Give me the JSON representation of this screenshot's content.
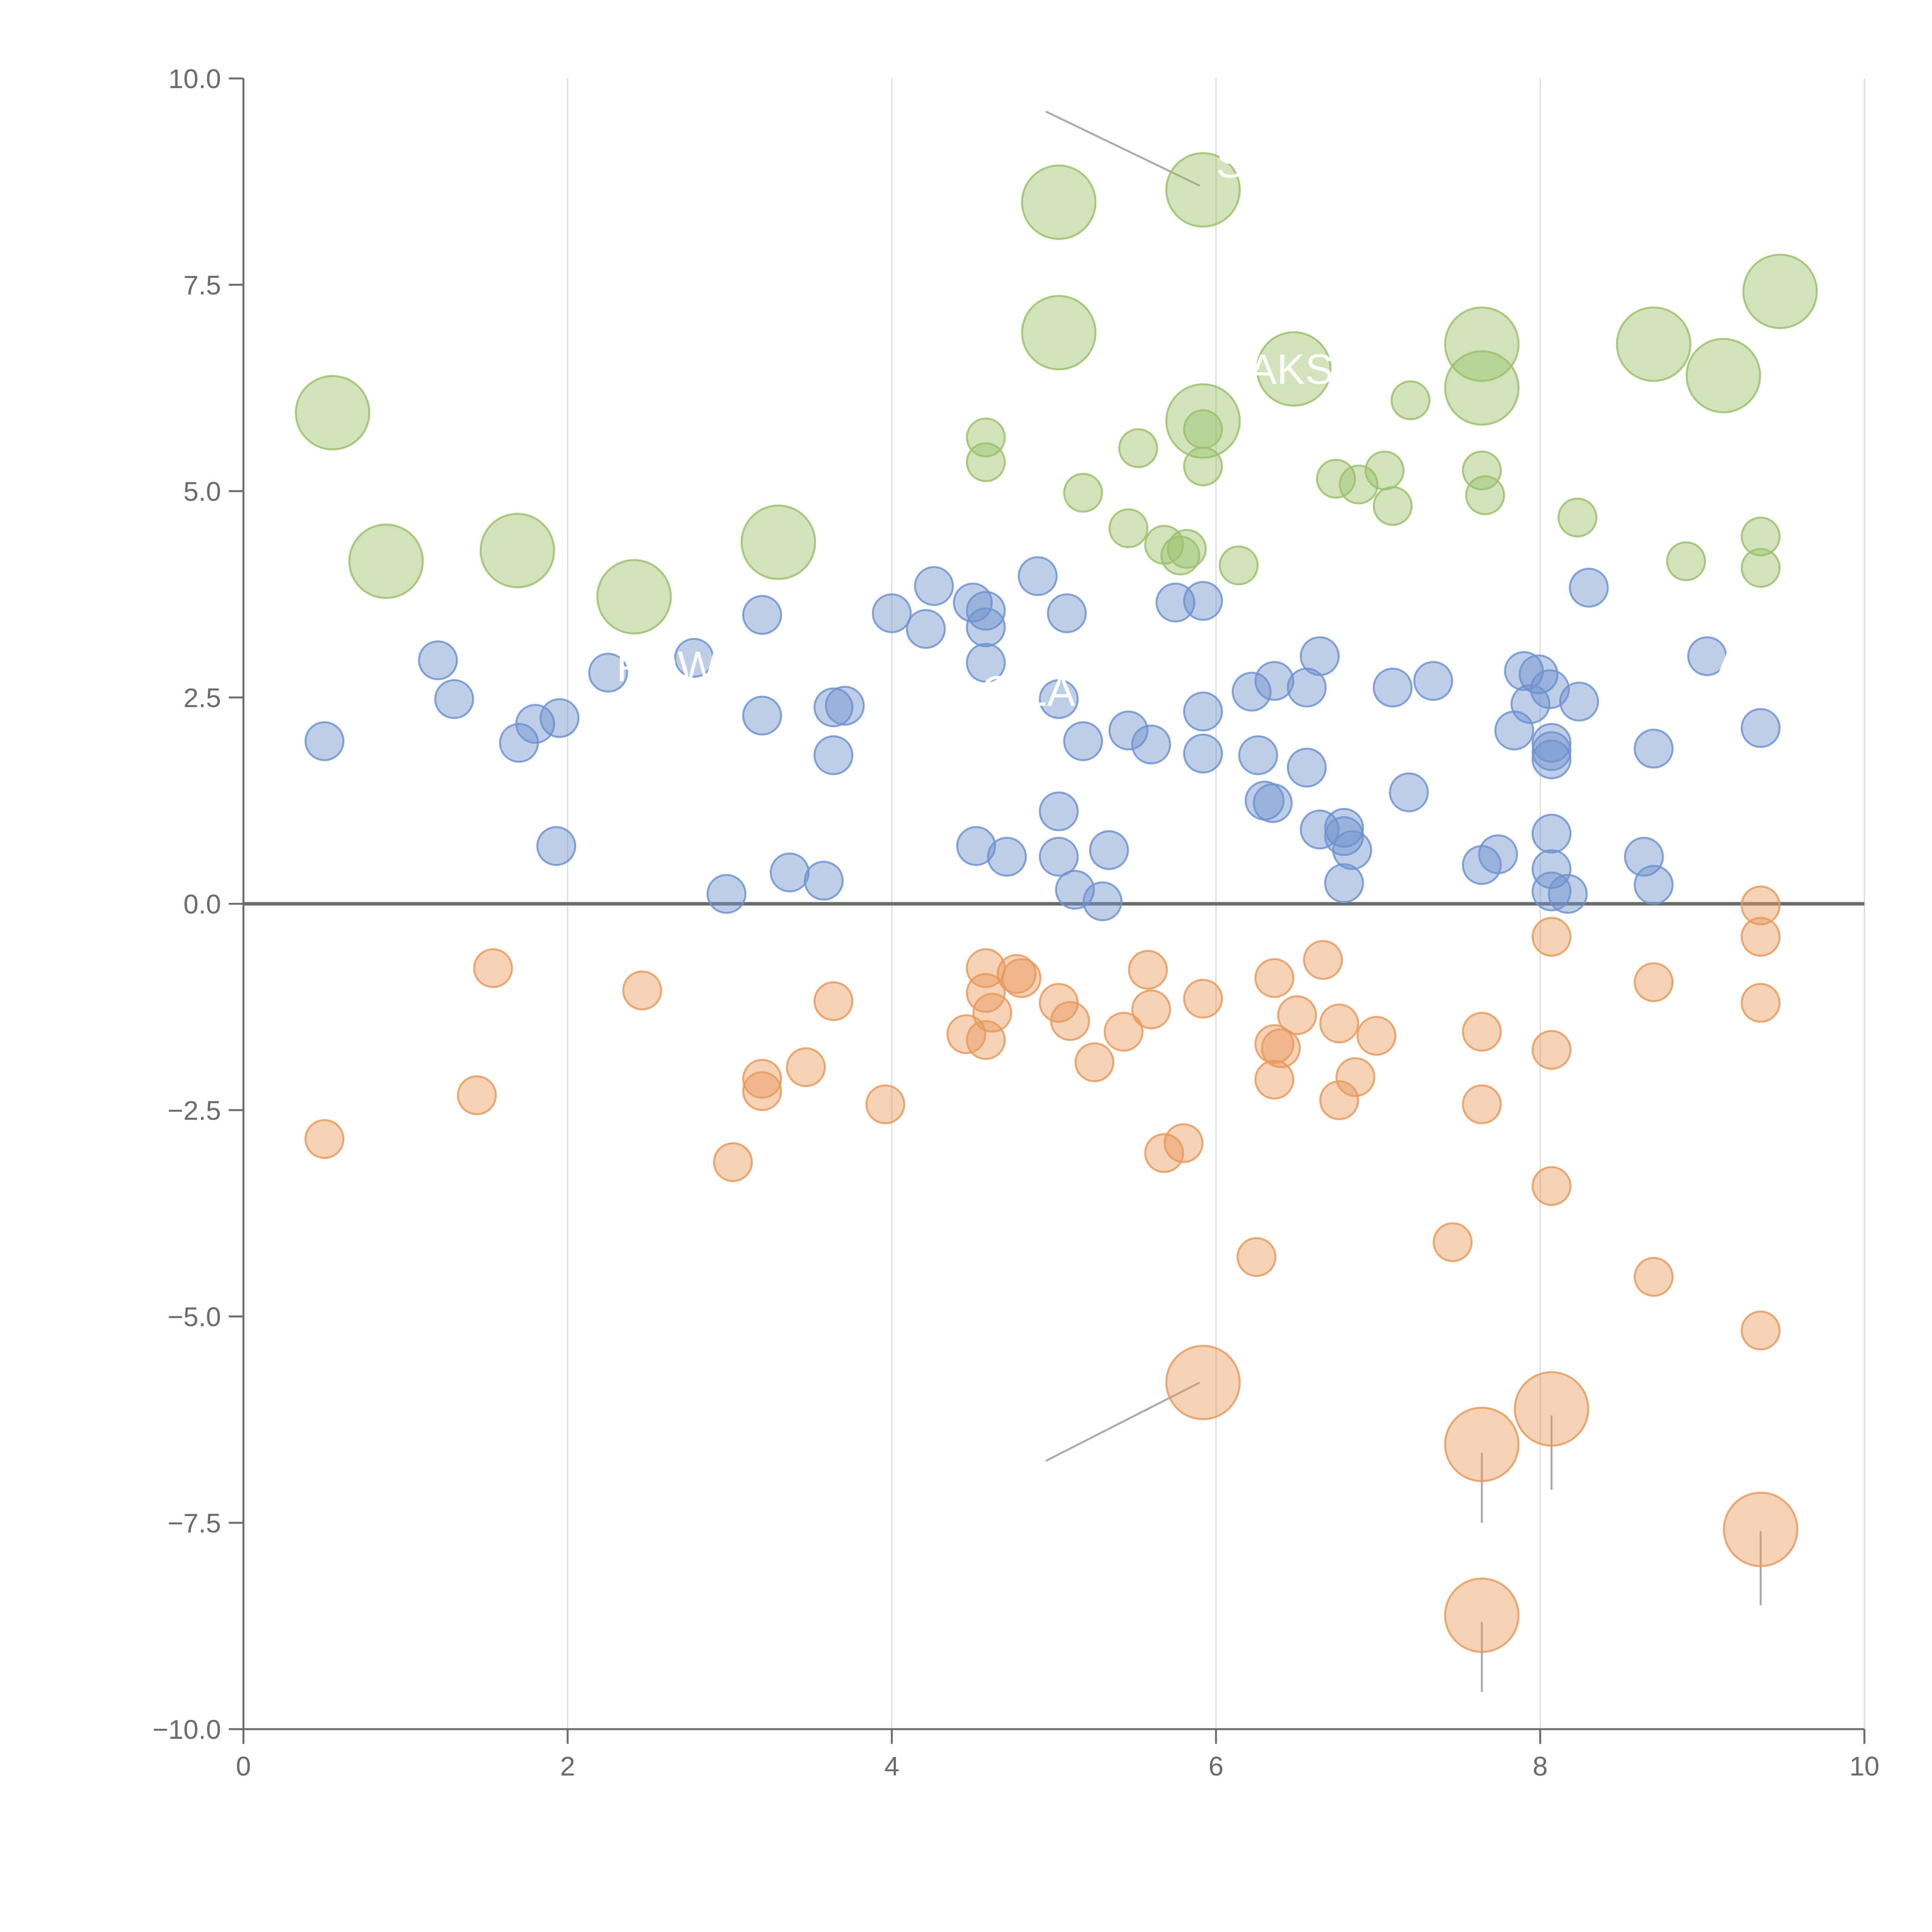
{
  "chart_data": {
    "type": "scatter",
    "title": "",
    "xlabel": "",
    "ylabel": "",
    "xlim": [
      0,
      10
    ],
    "ylim": [
      -10,
      10
    ],
    "grid": "vertical",
    "x_ticks": [
      0,
      2,
      4,
      6,
      8,
      10
    ],
    "y_ticks": [
      -10,
      -7.5,
      -5,
      -2.5,
      0,
      2.5,
      5,
      7.5,
      10
    ],
    "x_tick_labels": [
      "0",
      "2",
      "4",
      "6",
      "8",
      "10"
    ],
    "y_tick_labels": [
      "−10.0",
      "−7.5",
      "−5.0",
      "−2.5",
      "0.0",
      "2.5",
      "5.0",
      "7.5",
      "10.0"
    ],
    "baseline": 0,
    "colors": {
      "green": "#9bc16a",
      "blue": "#6f93cf",
      "orange": "#e89a5c",
      "axis": "#6b6b6b",
      "grid": "#d9d9d9",
      "leader": "#aaaaaa"
    },
    "series": [
      {
        "name": "green",
        "color": "#9bc16a",
        "points": [
          {
            "x": 0.55,
            "y": 5.95,
            "r": 2
          },
          {
            "x": 0.88,
            "y": 4.15,
            "r": 2
          },
          {
            "x": 1.69,
            "y": 4.28,
            "r": 2
          },
          {
            "x": 2.41,
            "y": 3.72,
            "r": 2
          },
          {
            "x": 3.3,
            "y": 4.38,
            "r": 2
          },
          {
            "x": 5.03,
            "y": 8.5,
            "r": 2
          },
          {
            "x": 5.03,
            "y": 6.92,
            "r": 2
          },
          {
            "x": 5.92,
            "y": 8.65,
            "r": 2
          },
          {
            "x": 6.48,
            "y": 6.48,
            "r": 2
          },
          {
            "x": 5.92,
            "y": 5.85,
            "r": 2
          },
          {
            "x": 7.64,
            "y": 6.78,
            "r": 2
          },
          {
            "x": 7.64,
            "y": 6.25,
            "r": 2
          },
          {
            "x": 8.7,
            "y": 6.78,
            "r": 2
          },
          {
            "x": 9.13,
            "y": 6.4,
            "r": 2
          },
          {
            "x": 9.48,
            "y": 7.42,
            "r": 2
          },
          {
            "x": 4.58,
            "y": 5.65,
            "r": 1
          },
          {
            "x": 4.58,
            "y": 5.35,
            "r": 1
          },
          {
            "x": 5.18,
            "y": 4.98,
            "r": 1
          },
          {
            "x": 5.52,
            "y": 5.52,
            "r": 1
          },
          {
            "x": 5.46,
            "y": 4.55,
            "r": 1
          },
          {
            "x": 5.68,
            "y": 4.35,
            "r": 1
          },
          {
            "x": 5.78,
            "y": 4.22,
            "r": 1
          },
          {
            "x": 5.82,
            "y": 4.3,
            "r": 1
          },
          {
            "x": 5.92,
            "y": 5.75,
            "r": 1
          },
          {
            "x": 5.92,
            "y": 5.3,
            "r": 1
          },
          {
            "x": 6.14,
            "y": 4.1,
            "r": 1
          },
          {
            "x": 6.74,
            "y": 5.15,
            "r": 1
          },
          {
            "x": 6.88,
            "y": 5.08,
            "r": 1
          },
          {
            "x": 7.04,
            "y": 5.25,
            "r": 1
          },
          {
            "x": 7.09,
            "y": 4.82,
            "r": 1
          },
          {
            "x": 7.2,
            "y": 6.1,
            "r": 1
          },
          {
            "x": 7.64,
            "y": 5.25,
            "r": 1
          },
          {
            "x": 7.66,
            "y": 4.95,
            "r": 1
          },
          {
            "x": 8.23,
            "y": 4.68,
            "r": 1
          },
          {
            "x": 8.9,
            "y": 4.15,
            "r": 1
          },
          {
            "x": 9.36,
            "y": 4.45,
            "r": 1
          },
          {
            "x": 9.36,
            "y": 4.07,
            "r": 1
          }
        ]
      },
      {
        "name": "blue",
        "color": "#6f93cf",
        "points": [
          {
            "x": 0.5,
            "y": 1.97,
            "r": 1
          },
          {
            "x": 1.2,
            "y": 2.95,
            "r": 1
          },
          {
            "x": 1.3,
            "y": 2.48,
            "r": 1
          },
          {
            "x": 1.7,
            "y": 1.95,
            "r": 1
          },
          {
            "x": 1.8,
            "y": 2.18,
            "r": 1
          },
          {
            "x": 1.95,
            "y": 2.25,
            "r": 1
          },
          {
            "x": 1.93,
            "y": 0.7,
            "r": 1
          },
          {
            "x": 2.25,
            "y": 2.8,
            "r": 1
          },
          {
            "x": 2.78,
            "y": 2.98,
            "r": 1
          },
          {
            "x": 2.98,
            "y": 0.12,
            "r": 1
          },
          {
            "x": 3.2,
            "y": 3.5,
            "r": 1
          },
          {
            "x": 3.2,
            "y": 2.28,
            "r": 1
          },
          {
            "x": 3.37,
            "y": 0.38,
            "r": 1
          },
          {
            "x": 3.58,
            "y": 0.28,
            "r": 1
          },
          {
            "x": 3.64,
            "y": 2.38,
            "r": 1
          },
          {
            "x": 3.64,
            "y": 1.8,
            "r": 1
          },
          {
            "x": 3.71,
            "y": 2.4,
            "r": 1
          },
          {
            "x": 4.0,
            "y": 3.52,
            "r": 1
          },
          {
            "x": 4.21,
            "y": 3.33,
            "r": 1
          },
          {
            "x": 4.26,
            "y": 3.85,
            "r": 1
          },
          {
            "x": 4.5,
            "y": 3.65,
            "r": 1
          },
          {
            "x": 4.58,
            "y": 3.55,
            "r": 1
          },
          {
            "x": 4.58,
            "y": 3.35,
            "r": 1
          },
          {
            "x": 4.58,
            "y": 2.92,
            "r": 1
          },
          {
            "x": 4.52,
            "y": 0.7,
            "r": 1
          },
          {
            "x": 4.71,
            "y": 0.57,
            "r": 1
          },
          {
            "x": 4.9,
            "y": 3.97,
            "r": 1
          },
          {
            "x": 5.03,
            "y": 2.48,
            "r": 1
          },
          {
            "x": 5.03,
            "y": 1.12,
            "r": 1
          },
          {
            "x": 5.03,
            "y": 0.57,
            "r": 1
          },
          {
            "x": 5.08,
            "y": 3.52,
            "r": 1
          },
          {
            "x": 5.13,
            "y": 0.17,
            "r": 1
          },
          {
            "x": 5.18,
            "y": 1.97,
            "r": 1
          },
          {
            "x": 5.3,
            "y": 0.03,
            "r": 1
          },
          {
            "x": 5.34,
            "y": 0.65,
            "r": 1
          },
          {
            "x": 5.46,
            "y": 2.1,
            "r": 1
          },
          {
            "x": 5.6,
            "y": 1.93,
            "r": 1
          },
          {
            "x": 5.75,
            "y": 3.65,
            "r": 1
          },
          {
            "x": 5.92,
            "y": 3.67,
            "r": 1
          },
          {
            "x": 5.92,
            "y": 2.33,
            "r": 1
          },
          {
            "x": 5.92,
            "y": 1.82,
            "r": 1
          },
          {
            "x": 6.22,
            "y": 2.57,
            "r": 1
          },
          {
            "x": 6.26,
            "y": 1.8,
            "r": 1
          },
          {
            "x": 6.3,
            "y": 1.25,
            "r": 1
          },
          {
            "x": 6.35,
            "y": 1.22,
            "r": 1
          },
          {
            "x": 6.36,
            "y": 2.7,
            "r": 1
          },
          {
            "x": 6.56,
            "y": 2.62,
            "r": 1
          },
          {
            "x": 6.56,
            "y": 1.65,
            "r": 1
          },
          {
            "x": 6.64,
            "y": 3.0,
            "r": 1
          },
          {
            "x": 6.64,
            "y": 0.9,
            "r": 1
          },
          {
            "x": 6.79,
            "y": 0.92,
            "r": 1
          },
          {
            "x": 6.79,
            "y": 0.82,
            "r": 1
          },
          {
            "x": 6.84,
            "y": 0.65,
            "r": 1
          },
          {
            "x": 6.79,
            "y": 0.25,
            "r": 1
          },
          {
            "x": 7.09,
            "y": 2.62,
            "r": 1
          },
          {
            "x": 7.19,
            "y": 1.35,
            "r": 1
          },
          {
            "x": 7.34,
            "y": 2.7,
            "r": 1
          },
          {
            "x": 7.64,
            "y": 0.47,
            "r": 1
          },
          {
            "x": 7.74,
            "y": 0.6,
            "r": 1
          },
          {
            "x": 7.84,
            "y": 2.1,
            "r": 1
          },
          {
            "x": 7.9,
            "y": 2.82,
            "r": 1
          },
          {
            "x": 7.94,
            "y": 2.42,
            "r": 1
          },
          {
            "x": 7.99,
            "y": 2.78,
            "r": 1
          },
          {
            "x": 8.06,
            "y": 2.6,
            "r": 1
          },
          {
            "x": 8.07,
            "y": 1.95,
            "r": 1
          },
          {
            "x": 8.07,
            "y": 1.85,
            "r": 1
          },
          {
            "x": 8.07,
            "y": 1.75,
            "r": 1
          },
          {
            "x": 8.07,
            "y": 0.85,
            "r": 1
          },
          {
            "x": 8.07,
            "y": 0.42,
            "r": 1
          },
          {
            "x": 8.07,
            "y": 0.15,
            "r": 1
          },
          {
            "x": 8.17,
            "y": 0.12,
            "r": 1
          },
          {
            "x": 8.24,
            "y": 2.45,
            "r": 1
          },
          {
            "x": 8.3,
            "y": 3.83,
            "r": 1
          },
          {
            "x": 8.64,
            "y": 0.57,
            "r": 1
          },
          {
            "x": 8.7,
            "y": 1.88,
            "r": 1
          },
          {
            "x": 8.7,
            "y": 0.23,
            "r": 1
          },
          {
            "x": 9.03,
            "y": 3.0,
            "r": 1
          },
          {
            "x": 9.36,
            "y": 2.13,
            "r": 1
          }
        ]
      },
      {
        "name": "orange",
        "color": "#e89a5c",
        "points": [
          {
            "x": 0.5,
            "y": -2.85,
            "r": 1
          },
          {
            "x": 1.44,
            "y": -2.32,
            "r": 1
          },
          {
            "x": 1.54,
            "y": -0.78,
            "r": 1
          },
          {
            "x": 2.46,
            "y": -1.05,
            "r": 1
          },
          {
            "x": 3.02,
            "y": -3.13,
            "r": 1
          },
          {
            "x": 3.2,
            "y": -2.12,
            "r": 1
          },
          {
            "x": 3.2,
            "y": -2.27,
            "r": 1
          },
          {
            "x": 3.47,
            "y": -1.98,
            "r": 1
          },
          {
            "x": 3.64,
            "y": -1.18,
            "r": 1
          },
          {
            "x": 3.96,
            "y": -2.43,
            "r": 1
          },
          {
            "x": 4.46,
            "y": -1.58,
            "r": 1
          },
          {
            "x": 4.58,
            "y": -0.78,
            "r": 1
          },
          {
            "x": 4.58,
            "y": -1.08,
            "r": 1
          },
          {
            "x": 4.58,
            "y": -1.65,
            "r": 1
          },
          {
            "x": 4.62,
            "y": -1.32,
            "r": 1
          },
          {
            "x": 4.77,
            "y": -0.85,
            "r": 1
          },
          {
            "x": 4.8,
            "y": -0.9,
            "r": 1
          },
          {
            "x": 5.03,
            "y": -1.2,
            "r": 1
          },
          {
            "x": 5.1,
            "y": -1.42,
            "r": 1
          },
          {
            "x": 5.25,
            "y": -1.92,
            "r": 1
          },
          {
            "x": 5.43,
            "y": -1.55,
            "r": 1
          },
          {
            "x": 5.58,
            "y": -0.8,
            "r": 1
          },
          {
            "x": 5.6,
            "y": -1.28,
            "r": 1
          },
          {
            "x": 5.68,
            "y": -3.02,
            "r": 1
          },
          {
            "x": 5.8,
            "y": -2.9,
            "r": 1
          },
          {
            "x": 5.92,
            "y": -1.15,
            "r": 1
          },
          {
            "x": 6.25,
            "y": -4.28,
            "r": 1
          },
          {
            "x": 6.36,
            "y": -0.9,
            "r": 1
          },
          {
            "x": 6.36,
            "y": -1.7,
            "r": 1
          },
          {
            "x": 6.36,
            "y": -2.13,
            "r": 1
          },
          {
            "x": 6.4,
            "y": -1.75,
            "r": 1
          },
          {
            "x": 6.5,
            "y": -1.35,
            "r": 1
          },
          {
            "x": 6.66,
            "y": -0.68,
            "r": 1
          },
          {
            "x": 6.76,
            "y": -1.45,
            "r": 1
          },
          {
            "x": 6.76,
            "y": -2.38,
            "r": 1
          },
          {
            "x": 6.86,
            "y": -2.1,
            "r": 1
          },
          {
            "x": 6.99,
            "y": -1.6,
            "r": 1
          },
          {
            "x": 7.46,
            "y": -4.1,
            "r": 1
          },
          {
            "x": 7.64,
            "y": -1.55,
            "r": 1
          },
          {
            "x": 7.64,
            "y": -2.43,
            "r": 1
          },
          {
            "x": 8.07,
            "y": -0.4,
            "r": 1
          },
          {
            "x": 8.07,
            "y": -1.77,
            "r": 1
          },
          {
            "x": 8.07,
            "y": -3.42,
            "r": 1
          },
          {
            "x": 8.7,
            "y": -0.95,
            "r": 1
          },
          {
            "x": 8.7,
            "y": -4.52,
            "r": 1
          },
          {
            "x": 9.36,
            "y": -0.02,
            "r": 1
          },
          {
            "x": 9.36,
            "y": -0.4,
            "r": 1
          },
          {
            "x": 9.36,
            "y": -1.2,
            "r": 1
          },
          {
            "x": 9.36,
            "y": -5.17,
            "r": 1
          },
          {
            "x": 5.92,
            "y": -5.8,
            "r": 2
          },
          {
            "x": 8.07,
            "y": -6.12,
            "r": 2
          },
          {
            "x": 7.64,
            "y": -6.55,
            "r": 2
          },
          {
            "x": 9.36,
            "y": -7.58,
            "r": 2
          },
          {
            "x": 7.64,
            "y": -8.62,
            "r": 2
          }
        ]
      }
    ],
    "annotations": [
      {
        "text": "SC",
        "x": 6.0,
        "y": 8.8
      },
      {
        "text": "AKS",
        "x": 6.2,
        "y": 6.3
      },
      {
        "text": "POWE",
        "x": 2.3,
        "y": 2.7
      },
      {
        "text": "C LA",
        "x": 4.55,
        "y": 2.4
      },
      {
        "text": "A",
        "x": 9.1,
        "y": 2.8
      }
    ],
    "leader_lines": [
      {
        "x1": 4.95,
        "y1": 9.6,
        "x2": 5.9,
        "y2": 8.7
      },
      {
        "x1": 4.95,
        "y1": -6.75,
        "x2": 5.9,
        "y2": -5.8
      },
      {
        "x1": 7.64,
        "y1": -6.65,
        "x2": 7.64,
        "y2": -7.5
      },
      {
        "x1": 8.07,
        "y1": -6.2,
        "x2": 8.07,
        "y2": -7.1
      },
      {
        "x1": 9.36,
        "y1": -7.6,
        "x2": 9.36,
        "y2": -8.5
      },
      {
        "x1": 7.64,
        "y1": -8.7,
        "x2": 7.64,
        "y2": -9.55
      }
    ]
  }
}
